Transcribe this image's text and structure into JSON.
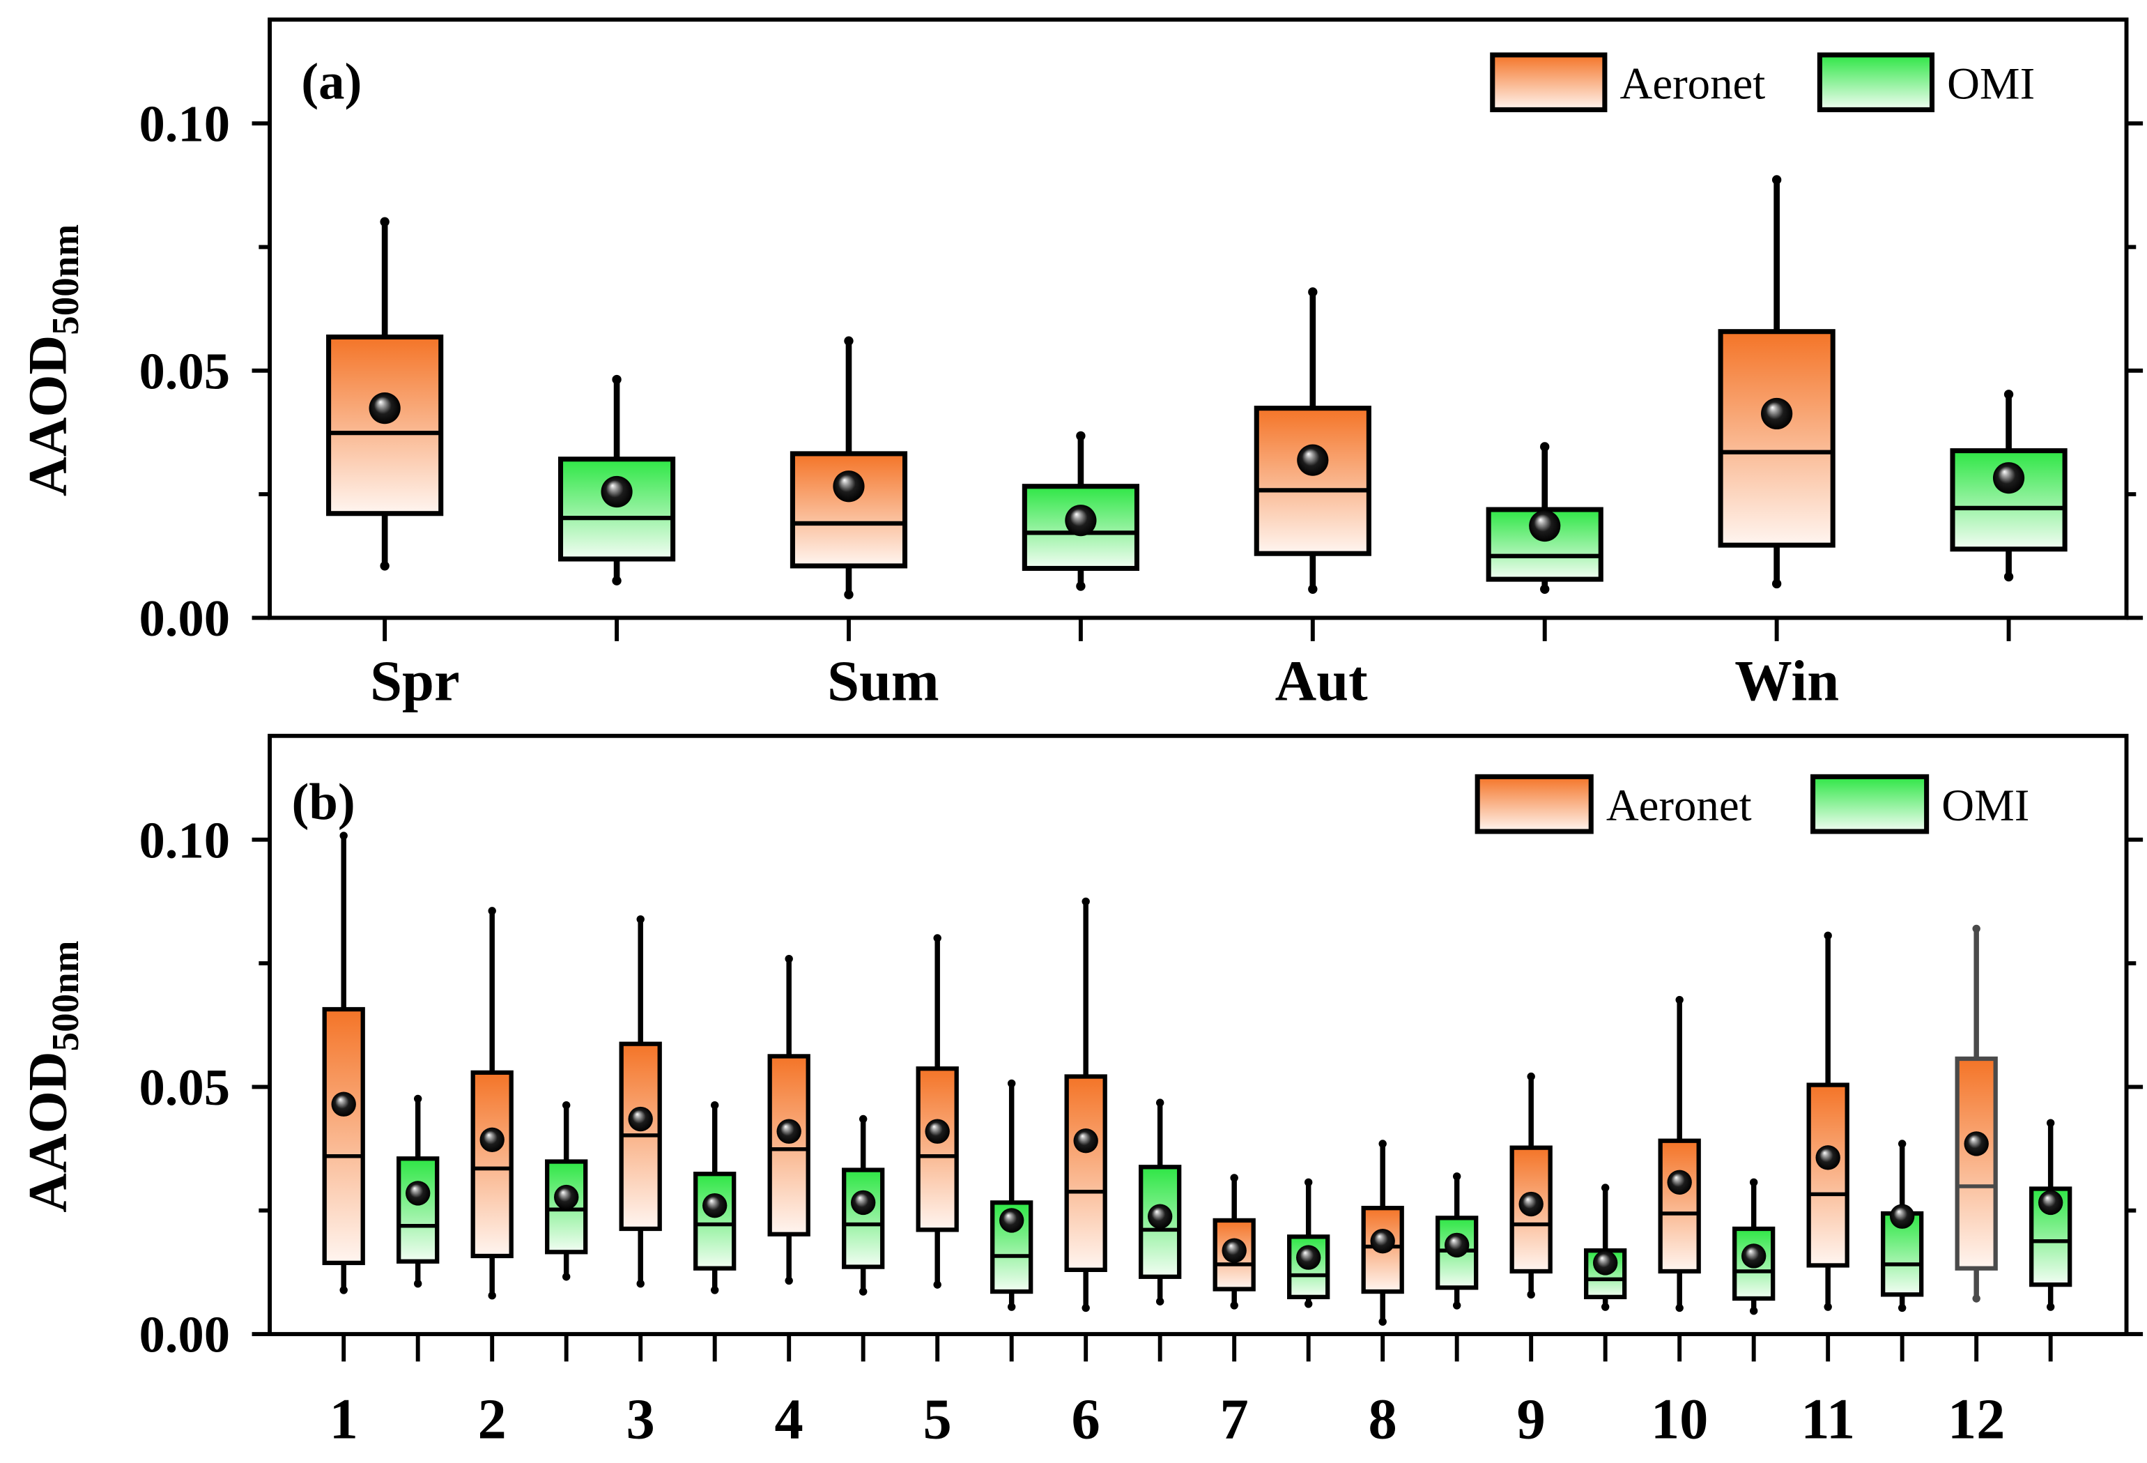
{
  "chart_data": [
    {
      "type": "box",
      "panel_label": "(a)",
      "categories": [
        "Spr",
        "Sum",
        "Aut",
        "Win"
      ],
      "ylabel": "AAOD",
      "ylabel_sub": "500nm",
      "ylim": [
        0,
        0.121
      ],
      "yticks": [
        0,
        0.05,
        0.1
      ],
      "ytick_labels": [
        "0.00",
        "0.05",
        "0.10"
      ],
      "grid": false,
      "legend_position": "top-right",
      "series": [
        {
          "name": "Aeronet",
          "color_top": "#f47427",
          "color_bottom": "#fff5f0",
          "boxes": [
            {
              "whisker_low": 0.0105,
              "q1": 0.0211,
              "median": 0.0374,
              "q3": 0.0568,
              "whisker_high": 0.0801,
              "mean": 0.0424
            },
            {
              "whisker_low": 0.0047,
              "q1": 0.0105,
              "median": 0.0191,
              "q3": 0.0332,
              "whisker_high": 0.056,
              "mean": 0.0266
            },
            {
              "whisker_low": 0.0058,
              "q1": 0.013,
              "median": 0.0258,
              "q3": 0.0424,
              "whisker_high": 0.0659,
              "mean": 0.0319
            },
            {
              "whisker_low": 0.0069,
              "q1": 0.0147,
              "median": 0.0335,
              "q3": 0.0579,
              "whisker_high": 0.0886,
              "mean": 0.0413
            }
          ]
        },
        {
          "name": "OMI",
          "color_top": "#2ee645",
          "color_bottom": "#f2fdf3",
          "boxes": [
            {
              "whisker_low": 0.0075,
              "q1": 0.0119,
              "median": 0.0202,
              "q3": 0.0321,
              "whisker_high": 0.0482,
              "mean": 0.0255
            },
            {
              "whisker_low": 0.0064,
              "q1": 0.01,
              "median": 0.0172,
              "q3": 0.0266,
              "whisker_high": 0.0368,
              "mean": 0.0197
            },
            {
              "whisker_low": 0.0058,
              "q1": 0.0078,
              "median": 0.0125,
              "q3": 0.0219,
              "whisker_high": 0.0346,
              "mean": 0.0186
            },
            {
              "whisker_low": 0.0083,
              "q1": 0.0139,
              "median": 0.0222,
              "q3": 0.0338,
              "whisker_high": 0.0452,
              "mean": 0.0283
            }
          ]
        }
      ]
    },
    {
      "type": "box",
      "panel_label": "(b)",
      "categories": [
        "1",
        "2",
        "3",
        "4",
        "5",
        "6",
        "7",
        "8",
        "9",
        "10",
        "11",
        "12"
      ],
      "ylabel": "AAOD",
      "ylabel_sub": "500nm",
      "ylim": [
        0,
        0.121
      ],
      "yticks": [
        0,
        0.05,
        0.1
      ],
      "ytick_labels": [
        "0.00",
        "0.05",
        "0.10"
      ],
      "grid": false,
      "legend_position": "top-right",
      "series": [
        {
          "name": "Aeronet",
          "color_top": "#f47427",
          "color_bottom": "#fff5f0",
          "boxes": [
            {
              "whisker_low": 0.0089,
              "q1": 0.0144,
              "median": 0.036,
              "q3": 0.0657,
              "whisker_high": 0.1008,
              "mean": 0.0465
            },
            {
              "whisker_low": 0.0078,
              "q1": 0.0158,
              "median": 0.0335,
              "q3": 0.0529,
              "whisker_high": 0.0856,
              "mean": 0.0393
            },
            {
              "whisker_low": 0.0102,
              "q1": 0.0213,
              "median": 0.0402,
              "q3": 0.0587,
              "whisker_high": 0.0839,
              "mean": 0.0435
            },
            {
              "whisker_low": 0.0108,
              "q1": 0.0202,
              "median": 0.0374,
              "q3": 0.0562,
              "whisker_high": 0.0759,
              "mean": 0.041
            },
            {
              "whisker_low": 0.01,
              "q1": 0.0211,
              "median": 0.036,
              "q3": 0.0537,
              "whisker_high": 0.0801,
              "mean": 0.041
            },
            {
              "whisker_low": 0.0053,
              "q1": 0.013,
              "median": 0.0288,
              "q3": 0.0521,
              "whisker_high": 0.0875,
              "mean": 0.0391
            },
            {
              "whisker_low": 0.0058,
              "q1": 0.0091,
              "median": 0.0141,
              "q3": 0.023,
              "whisker_high": 0.0316,
              "mean": 0.0169
            },
            {
              "whisker_low": 0.0025,
              "q1": 0.0086,
              "median": 0.0177,
              "q3": 0.0255,
              "whisker_high": 0.0385,
              "mean": 0.0188
            },
            {
              "whisker_low": 0.008,
              "q1": 0.0127,
              "median": 0.0222,
              "q3": 0.0377,
              "whisker_high": 0.0521,
              "mean": 0.0263
            },
            {
              "whisker_low": 0.0053,
              "q1": 0.0127,
              "median": 0.0244,
              "q3": 0.0391,
              "whisker_high": 0.0676,
              "mean": 0.0307
            },
            {
              "whisker_low": 0.0055,
              "q1": 0.0139,
              "median": 0.0283,
              "q3": 0.0504,
              "whisker_high": 0.0806,
              "mean": 0.0357
            },
            {
              "whisker_low": 0.0072,
              "q1": 0.0133,
              "median": 0.0299,
              "q3": 0.0557,
              "whisker_high": 0.082,
              "mean": 0.0385,
              "outline": "#4a4a4a"
            }
          ]
        },
        {
          "name": "OMI",
          "color_top": "#2ee645",
          "color_bottom": "#f2fdf3",
          "boxes": [
            {
              "whisker_low": 0.0102,
              "q1": 0.0147,
              "median": 0.0219,
              "q3": 0.0355,
              "whisker_high": 0.0476,
              "mean": 0.0285
            },
            {
              "whisker_low": 0.0116,
              "q1": 0.0166,
              "median": 0.0252,
              "q3": 0.0349,
              "whisker_high": 0.0463,
              "mean": 0.0277
            },
            {
              "whisker_low": 0.0089,
              "q1": 0.0133,
              "median": 0.0222,
              "q3": 0.0324,
              "whisker_high": 0.0463,
              "mean": 0.026
            },
            {
              "whisker_low": 0.0086,
              "q1": 0.0136,
              "median": 0.0222,
              "q3": 0.0332,
              "whisker_high": 0.0435,
              "mean": 0.0266
            },
            {
              "whisker_low": 0.0055,
              "q1": 0.0086,
              "median": 0.0158,
              "q3": 0.0266,
              "whisker_high": 0.0507,
              "mean": 0.023
            },
            {
              "whisker_low": 0.0066,
              "q1": 0.0116,
              "median": 0.0211,
              "q3": 0.0338,
              "whisker_high": 0.0468,
              "mean": 0.0238
            },
            {
              "whisker_low": 0.0061,
              "q1": 0.0075,
              "median": 0.0119,
              "q3": 0.0197,
              "whisker_high": 0.0307,
              "mean": 0.0155
            },
            {
              "whisker_low": 0.0058,
              "q1": 0.0094,
              "median": 0.0169,
              "q3": 0.0235,
              "whisker_high": 0.0319,
              "mean": 0.018
            },
            {
              "whisker_low": 0.0055,
              "q1": 0.0075,
              "median": 0.0111,
              "q3": 0.0169,
              "whisker_high": 0.0296,
              "mean": 0.0144
            },
            {
              "whisker_low": 0.0047,
              "q1": 0.0072,
              "median": 0.0127,
              "q3": 0.0213,
              "whisker_high": 0.0307,
              "mean": 0.0158
            },
            {
              "whisker_low": 0.0053,
              "q1": 0.008,
              "median": 0.0141,
              "q3": 0.0244,
              "whisker_high": 0.0385,
              "mean": 0.0238
            },
            {
              "whisker_low": 0.0055,
              "q1": 0.01,
              "median": 0.0188,
              "q3": 0.0294,
              "whisker_high": 0.0427,
              "mean": 0.0266
            }
          ]
        }
      ]
    }
  ]
}
